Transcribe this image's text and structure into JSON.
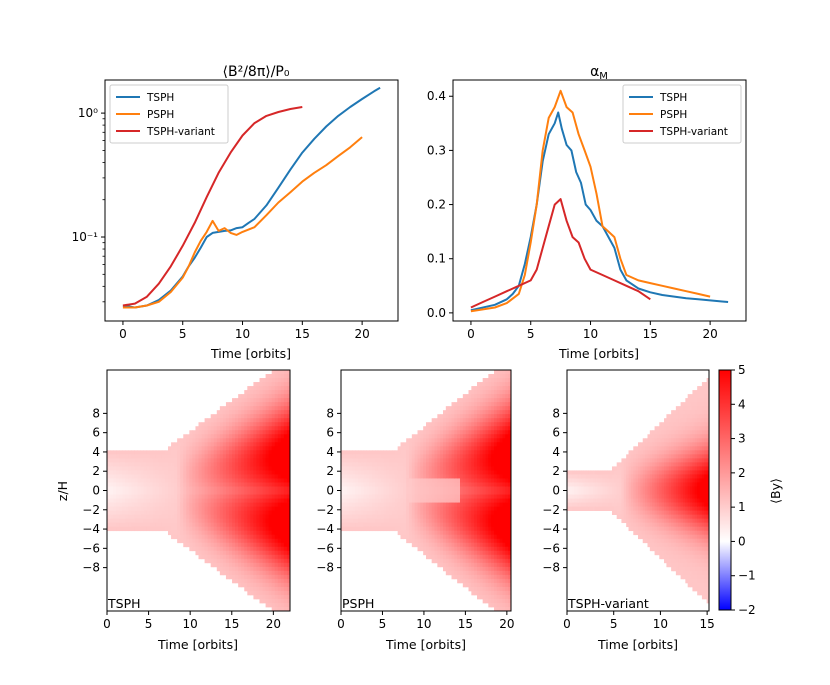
{
  "colors": {
    "TSPH": "#1f77b4",
    "PSPH": "#ff7f0e",
    "TSPH-variant": "#d62728"
  },
  "chart_data": [
    {
      "id": "magnetic-energy",
      "type": "line",
      "title": "⟨B²/8π⟩/P₀",
      "xlabel": "Time [orbits]",
      "ylabel": "",
      "yscale": "log",
      "xlim": [
        -1.5,
        23
      ],
      "ylim": [
        0.021,
        1.85
      ],
      "xticks": [
        0,
        5,
        10,
        15,
        20
      ],
      "yticks": [
        {
          "value": 0.1,
          "label": "10⁻¹"
        },
        {
          "value": 1,
          "label": "10⁰"
        }
      ],
      "legend": {
        "position": "top-left",
        "entries": [
          "TSPH",
          "PSPH",
          "TSPH-variant"
        ]
      },
      "series": [
        {
          "name": "TSPH",
          "x": [
            0,
            1,
            2,
            3,
            4,
            5,
            5.5,
            6,
            6.5,
            7,
            7.5,
            8,
            8.5,
            9,
            9.5,
            10,
            10.5,
            11,
            12,
            13,
            14,
            15,
            16,
            17,
            18,
            19,
            20,
            21,
            21.5
          ],
          "y": [
            0.028,
            0.027,
            0.028,
            0.031,
            0.037,
            0.048,
            0.058,
            0.068,
            0.082,
            0.1,
            0.108,
            0.11,
            0.112,
            0.113,
            0.118,
            0.12,
            0.13,
            0.14,
            0.18,
            0.25,
            0.35,
            0.48,
            0.62,
            0.78,
            0.95,
            1.12,
            1.3,
            1.5,
            1.6
          ]
        },
        {
          "name": "PSPH",
          "x": [
            0,
            1,
            2,
            3,
            4,
            5,
            5.5,
            6,
            6.5,
            7,
            7.5,
            8,
            8.5,
            9,
            9.5,
            10,
            11,
            12,
            13,
            14,
            15,
            16,
            17,
            18,
            19,
            20
          ],
          "y": [
            0.027,
            0.027,
            0.028,
            0.03,
            0.036,
            0.047,
            0.058,
            0.075,
            0.093,
            0.11,
            0.135,
            0.112,
            0.118,
            0.108,
            0.104,
            0.11,
            0.12,
            0.15,
            0.19,
            0.23,
            0.28,
            0.33,
            0.38,
            0.45,
            0.53,
            0.64
          ]
        },
        {
          "name": "TSPH-variant",
          "x": [
            0,
            1,
            2,
            3,
            4,
            5,
            6,
            7,
            8,
            9,
            10,
            11,
            12,
            13,
            14,
            15
          ],
          "y": [
            0.028,
            0.029,
            0.033,
            0.042,
            0.058,
            0.085,
            0.13,
            0.21,
            0.33,
            0.48,
            0.66,
            0.83,
            0.95,
            1.02,
            1.08,
            1.12
          ]
        }
      ]
    },
    {
      "id": "alpha-m",
      "type": "line",
      "title": "αM",
      "xlabel": "Time [orbits]",
      "ylabel": "",
      "xlim": [
        -1.5,
        23
      ],
      "ylim": [
        -0.015,
        0.43
      ],
      "xticks": [
        0,
        5,
        10,
        15,
        20
      ],
      "yticks": [
        0.0,
        0.1,
        0.2,
        0.3,
        0.4
      ],
      "legend": {
        "position": "top-right",
        "entries": [
          "TSPH",
          "PSPH",
          "TSPH-variant"
        ]
      },
      "series": [
        {
          "name": "TSPH",
          "x": [
            0,
            2,
            3,
            3.5,
            4,
            4.5,
            5,
            5.5,
            6,
            6.5,
            7,
            7.3,
            7.6,
            8,
            8.4,
            8.8,
            9.2,
            9.6,
            10,
            10.5,
            11,
            11.5,
            12,
            12.5,
            13,
            14,
            15,
            16,
            17,
            18,
            19,
            20,
            21,
            21.5
          ],
          "y": [
            0.005,
            0.015,
            0.025,
            0.035,
            0.05,
            0.09,
            0.14,
            0.2,
            0.28,
            0.33,
            0.35,
            0.37,
            0.34,
            0.31,
            0.3,
            0.26,
            0.24,
            0.2,
            0.19,
            0.17,
            0.16,
            0.14,
            0.12,
            0.08,
            0.06,
            0.045,
            0.038,
            0.033,
            0.03,
            0.027,
            0.025,
            0.023,
            0.021,
            0.02
          ]
        },
        {
          "name": "PSPH",
          "x": [
            0,
            2,
            3,
            4,
            4.5,
            5,
            5.5,
            6,
            6.5,
            7,
            7.5,
            8,
            8.5,
            9,
            9.5,
            10,
            10.5,
            11,
            11.5,
            12,
            12.5,
            13,
            14,
            15,
            16,
            17,
            18,
            19,
            20
          ],
          "y": [
            0.003,
            0.01,
            0.018,
            0.035,
            0.07,
            0.13,
            0.2,
            0.3,
            0.36,
            0.38,
            0.41,
            0.38,
            0.37,
            0.33,
            0.3,
            0.27,
            0.22,
            0.16,
            0.15,
            0.14,
            0.1,
            0.07,
            0.06,
            0.055,
            0.05,
            0.045,
            0.04,
            0.035,
            0.03
          ]
        },
        {
          "name": "TSPH-variant",
          "x": [
            0,
            1,
            2,
            3,
            4,
            5,
            5.5,
            6,
            6.5,
            7,
            7.5,
            8,
            8.5,
            9,
            9.5,
            10,
            11,
            12,
            13,
            14,
            15
          ],
          "y": [
            0.01,
            0.02,
            0.03,
            0.04,
            0.05,
            0.06,
            0.08,
            0.12,
            0.16,
            0.2,
            0.21,
            0.17,
            0.14,
            0.13,
            0.1,
            0.08,
            0.07,
            0.06,
            0.05,
            0.04,
            0.025
          ]
        }
      ]
    },
    {
      "id": "butterfly-tsph",
      "type": "heatmap",
      "label": "TSPH",
      "xlabel": "Time [orbits]",
      "ylabel": "z/H",
      "tmax": 22,
      "xlim": [
        0,
        22
      ],
      "ylim": [
        -12.5,
        12.5
      ],
      "xticks": [
        0,
        5,
        10,
        15,
        20
      ],
      "yticks": [
        {
          "value": 8,
          "label": "8"
        },
        {
          "value": 6,
          "label": "6"
        },
        {
          "value": 4,
          "label": "4"
        },
        {
          "value": 2,
          "label": "2"
        },
        {
          "value": 0,
          "label": "0"
        },
        {
          "value": -2,
          "label": "−2"
        },
        {
          "value": -4,
          "label": "−4"
        },
        {
          "value": -6,
          "label": "−6"
        },
        {
          "value": -8,
          "label": "−8"
        }
      ]
    },
    {
      "id": "butterfly-psph",
      "type": "heatmap",
      "label": "PSPH",
      "xlabel": "Time [orbits]",
      "ylabel": "",
      "tmax": 20.5,
      "xlim": [
        0,
        20.5
      ],
      "ylim": [
        -12.5,
        12.5
      ],
      "xticks": [
        0,
        5,
        10,
        15,
        20
      ],
      "yticks": [
        {
          "value": 8,
          "label": "8"
        },
        {
          "value": 6,
          "label": "6"
        },
        {
          "value": 4,
          "label": "4"
        },
        {
          "value": 2,
          "label": "2"
        },
        {
          "value": 0,
          "label": "0"
        },
        {
          "value": -2,
          "label": "−2"
        },
        {
          "value": -4,
          "label": "−4"
        },
        {
          "value": -6,
          "label": "−6"
        },
        {
          "value": -8,
          "label": "−8"
        }
      ]
    },
    {
      "id": "butterfly-variant",
      "type": "heatmap",
      "label": "TSPH-variant",
      "xlabel": "Time [orbits]",
      "ylabel": "",
      "tmax": 15.2,
      "xlim": [
        0,
        15.2
      ],
      "ylim": [
        -12.5,
        12.5
      ],
      "xticks": [
        0,
        5,
        10,
        15
      ],
      "yticks": [
        {
          "value": 8,
          "label": "8"
        },
        {
          "value": 6,
          "label": "6"
        },
        {
          "value": 4,
          "label": "4"
        },
        {
          "value": 2,
          "label": "2"
        },
        {
          "value": 0,
          "label": "0"
        },
        {
          "value": -2,
          "label": "−2"
        },
        {
          "value": -4,
          "label": "−4"
        },
        {
          "value": -6,
          "label": "−6"
        },
        {
          "value": -8,
          "label": "−8"
        }
      ]
    }
  ],
  "colorbar": {
    "label": "⟨By⟩",
    "vmin": -2,
    "vmax": 5,
    "ticks": [
      {
        "value": 5,
        "label": "5"
      },
      {
        "value": 4,
        "label": "4"
      },
      {
        "value": 3,
        "label": "3"
      },
      {
        "value": 2,
        "label": "2"
      },
      {
        "value": 1,
        "label": "1"
      },
      {
        "value": 0,
        "label": "0"
      },
      {
        "value": -1,
        "label": "−1"
      },
      {
        "value": -2,
        "label": "−2"
      }
    ]
  }
}
